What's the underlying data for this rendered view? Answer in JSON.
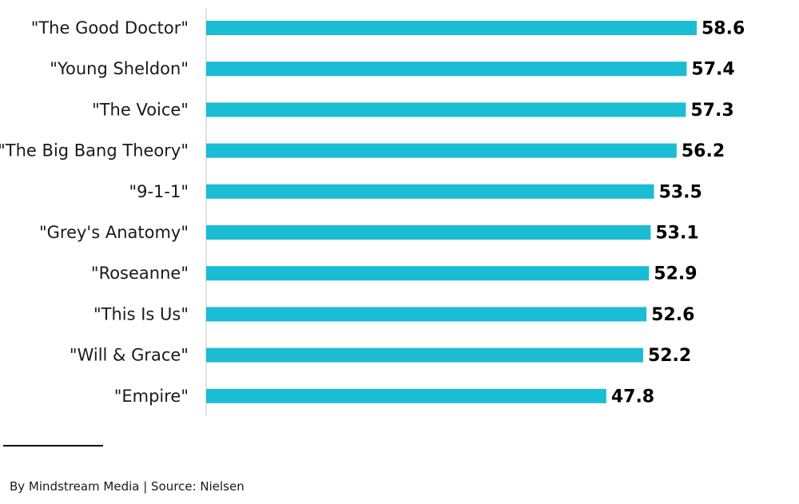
{
  "footer": {
    "source": "By Mindstream Media | Source: Nielsen"
  },
  "colors": {
    "bar": "#1bbdd4",
    "axis": "#d9d9d9"
  },
  "chart_data": {
    "type": "bar",
    "orientation": "horizontal",
    "title": "",
    "xlabel": "",
    "ylabel": "",
    "grid": false,
    "categories": [
      "\"The Good Doctor\"",
      "\"Young Sheldon\"",
      "\"The Voice\"",
      "\"The Big Bang Theory\"",
      "\"9-1-1\"",
      "\"Grey's Anatomy\"",
      "\"Roseanne\"",
      "\"This Is Us\"",
      "\"Will & Grace\"",
      "\"Empire\""
    ],
    "values": [
      58.6,
      57.4,
      57.3,
      56.2,
      53.5,
      53.1,
      52.9,
      52.6,
      52.2,
      47.8
    ],
    "value_labels": [
      "58.6",
      "57.4",
      "57.3",
      "56.2",
      "53.5",
      "53.1",
      "52.9",
      "52.6",
      "52.2",
      "47.8"
    ],
    "xlim": [
      0,
      60
    ]
  }
}
